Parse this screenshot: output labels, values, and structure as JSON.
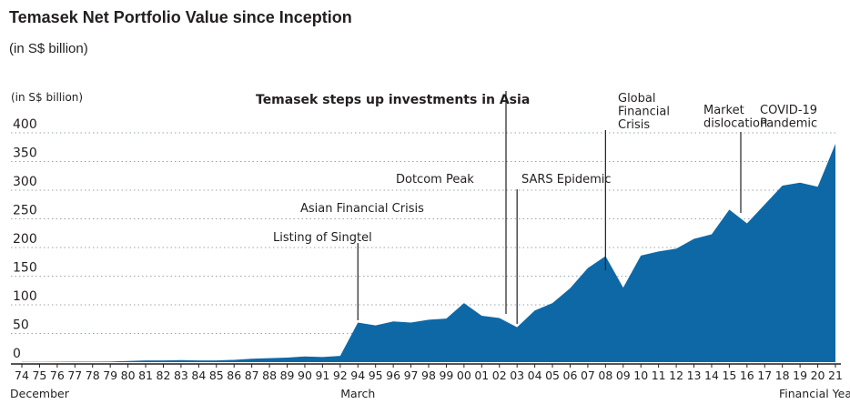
{
  "title": "Temasek Net Portfolio Value since Inception",
  "subtitle": "(in S$ billion)",
  "chart_data": {
    "type": "area",
    "title": "Temasek Net Portfolio Value since Inception",
    "subtitle": "(in S$ billion)",
    "ylabel": "(in S$ billion)",
    "xlabel": "Financial Year",
    "ylim": [
      0,
      400
    ],
    "yticks": [
      0,
      50,
      100,
      150,
      200,
      250,
      300,
      350,
      400
    ],
    "grid": "dotted horizontal",
    "color": "#0f68a6",
    "x": [
      "74",
      "75",
      "76",
      "77",
      "78",
      "79",
      "80",
      "81",
      "82",
      "83",
      "84",
      "85",
      "86",
      "87",
      "88",
      "89",
      "90",
      "91",
      "92",
      "94",
      "95",
      "96",
      "97",
      "98",
      "99",
      "00",
      "01",
      "02",
      "03",
      "04",
      "05",
      "06",
      "07",
      "08",
      "09",
      "10",
      "11",
      "12",
      "13",
      "14",
      "15",
      "16",
      "17",
      "18",
      "19",
      "20",
      "21"
    ],
    "values": [
      0.4,
      0.5,
      0.6,
      0.7,
      0.8,
      1,
      2,
      3,
      3,
      3.5,
      3,
      3,
      4,
      6,
      7,
      8,
      10,
      9,
      11,
      69,
      64,
      71,
      69,
      74,
      76,
      103,
      81,
      77,
      61,
      90,
      103,
      129,
      164,
      185,
      130,
      186,
      193,
      198,
      215,
      223,
      266,
      242,
      275,
      308,
      313,
      306,
      381
    ],
    "x_sublabels": [
      {
        "at": "75",
        "text": "December"
      },
      {
        "at": "94",
        "text": "March"
      },
      {
        "at": "20",
        "text": "Financial Year"
      }
    ],
    "annotations": [
      {
        "text": "Listing of Singtel",
        "x": "94"
      },
      {
        "text": "Asian Financial Crisis",
        "x": "98"
      },
      {
        "text": "Dotcom Peak",
        "x": "01"
      },
      {
        "text": "Temasek steps up investments in Asia",
        "x": "02"
      },
      {
        "text": "SARS Epidemic",
        "x": "03"
      },
      {
        "text": "Global\nFinancial\nCrisis",
        "x": "08"
      },
      {
        "text": "Market\ndislocation",
        "x": "16"
      },
      {
        "text": "COVID-19\nPandemic",
        "x": "19"
      }
    ]
  }
}
